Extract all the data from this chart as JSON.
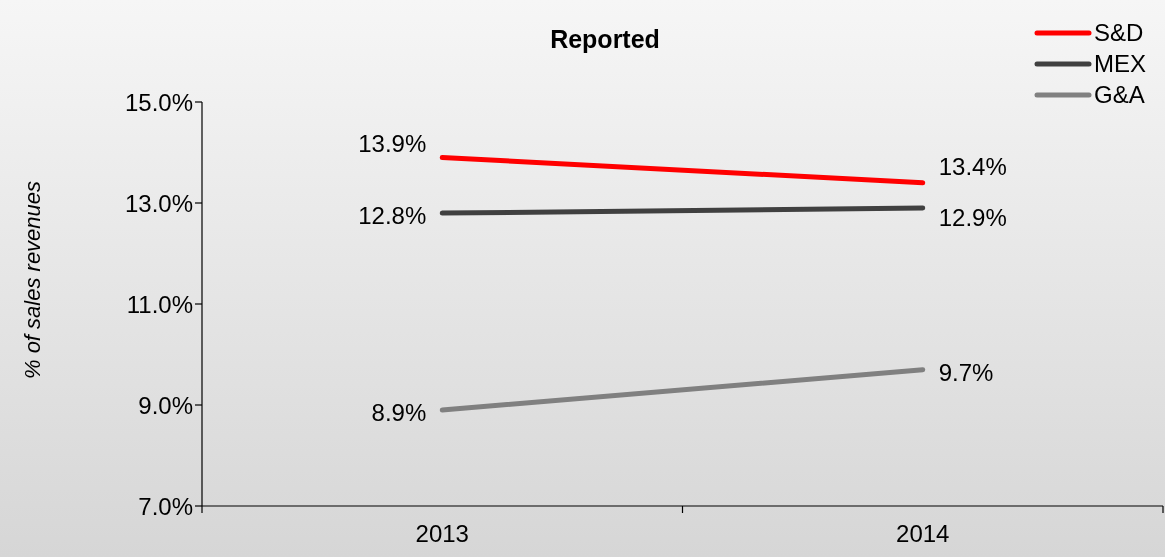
{
  "chart_data": {
    "type": "line",
    "title": "Reported",
    "ylabel": "% of sales revenues",
    "categories": [
      "2013",
      "2014"
    ],
    "series": [
      {
        "name": "S&D",
        "color": "#ff0000",
        "values": [
          13.9,
          13.4
        ],
        "value_labels": [
          "13.9%",
          "13.4%"
        ]
      },
      {
        "name": "MEX",
        "color": "#404040",
        "values": [
          12.8,
          12.9
        ],
        "value_labels": [
          "12.8%",
          "12.9%"
        ]
      },
      {
        "name": "G&A",
        "color": "#808080",
        "values": [
          8.9,
          9.7
        ],
        "value_labels": [
          "8.9%",
          "9.7%"
        ]
      }
    ],
    "ylim": [
      7,
      15
    ],
    "yticks": [
      {
        "value": 7,
        "label": "7.0%"
      },
      {
        "value": 9,
        "label": "9.0%"
      },
      {
        "value": 11,
        "label": "11.0%"
      },
      {
        "value": 13,
        "label": "13.0%"
      },
      {
        "value": 15,
        "label": "15.0%"
      }
    ],
    "legend": "top right",
    "marker": "none",
    "line_style": "solid"
  }
}
